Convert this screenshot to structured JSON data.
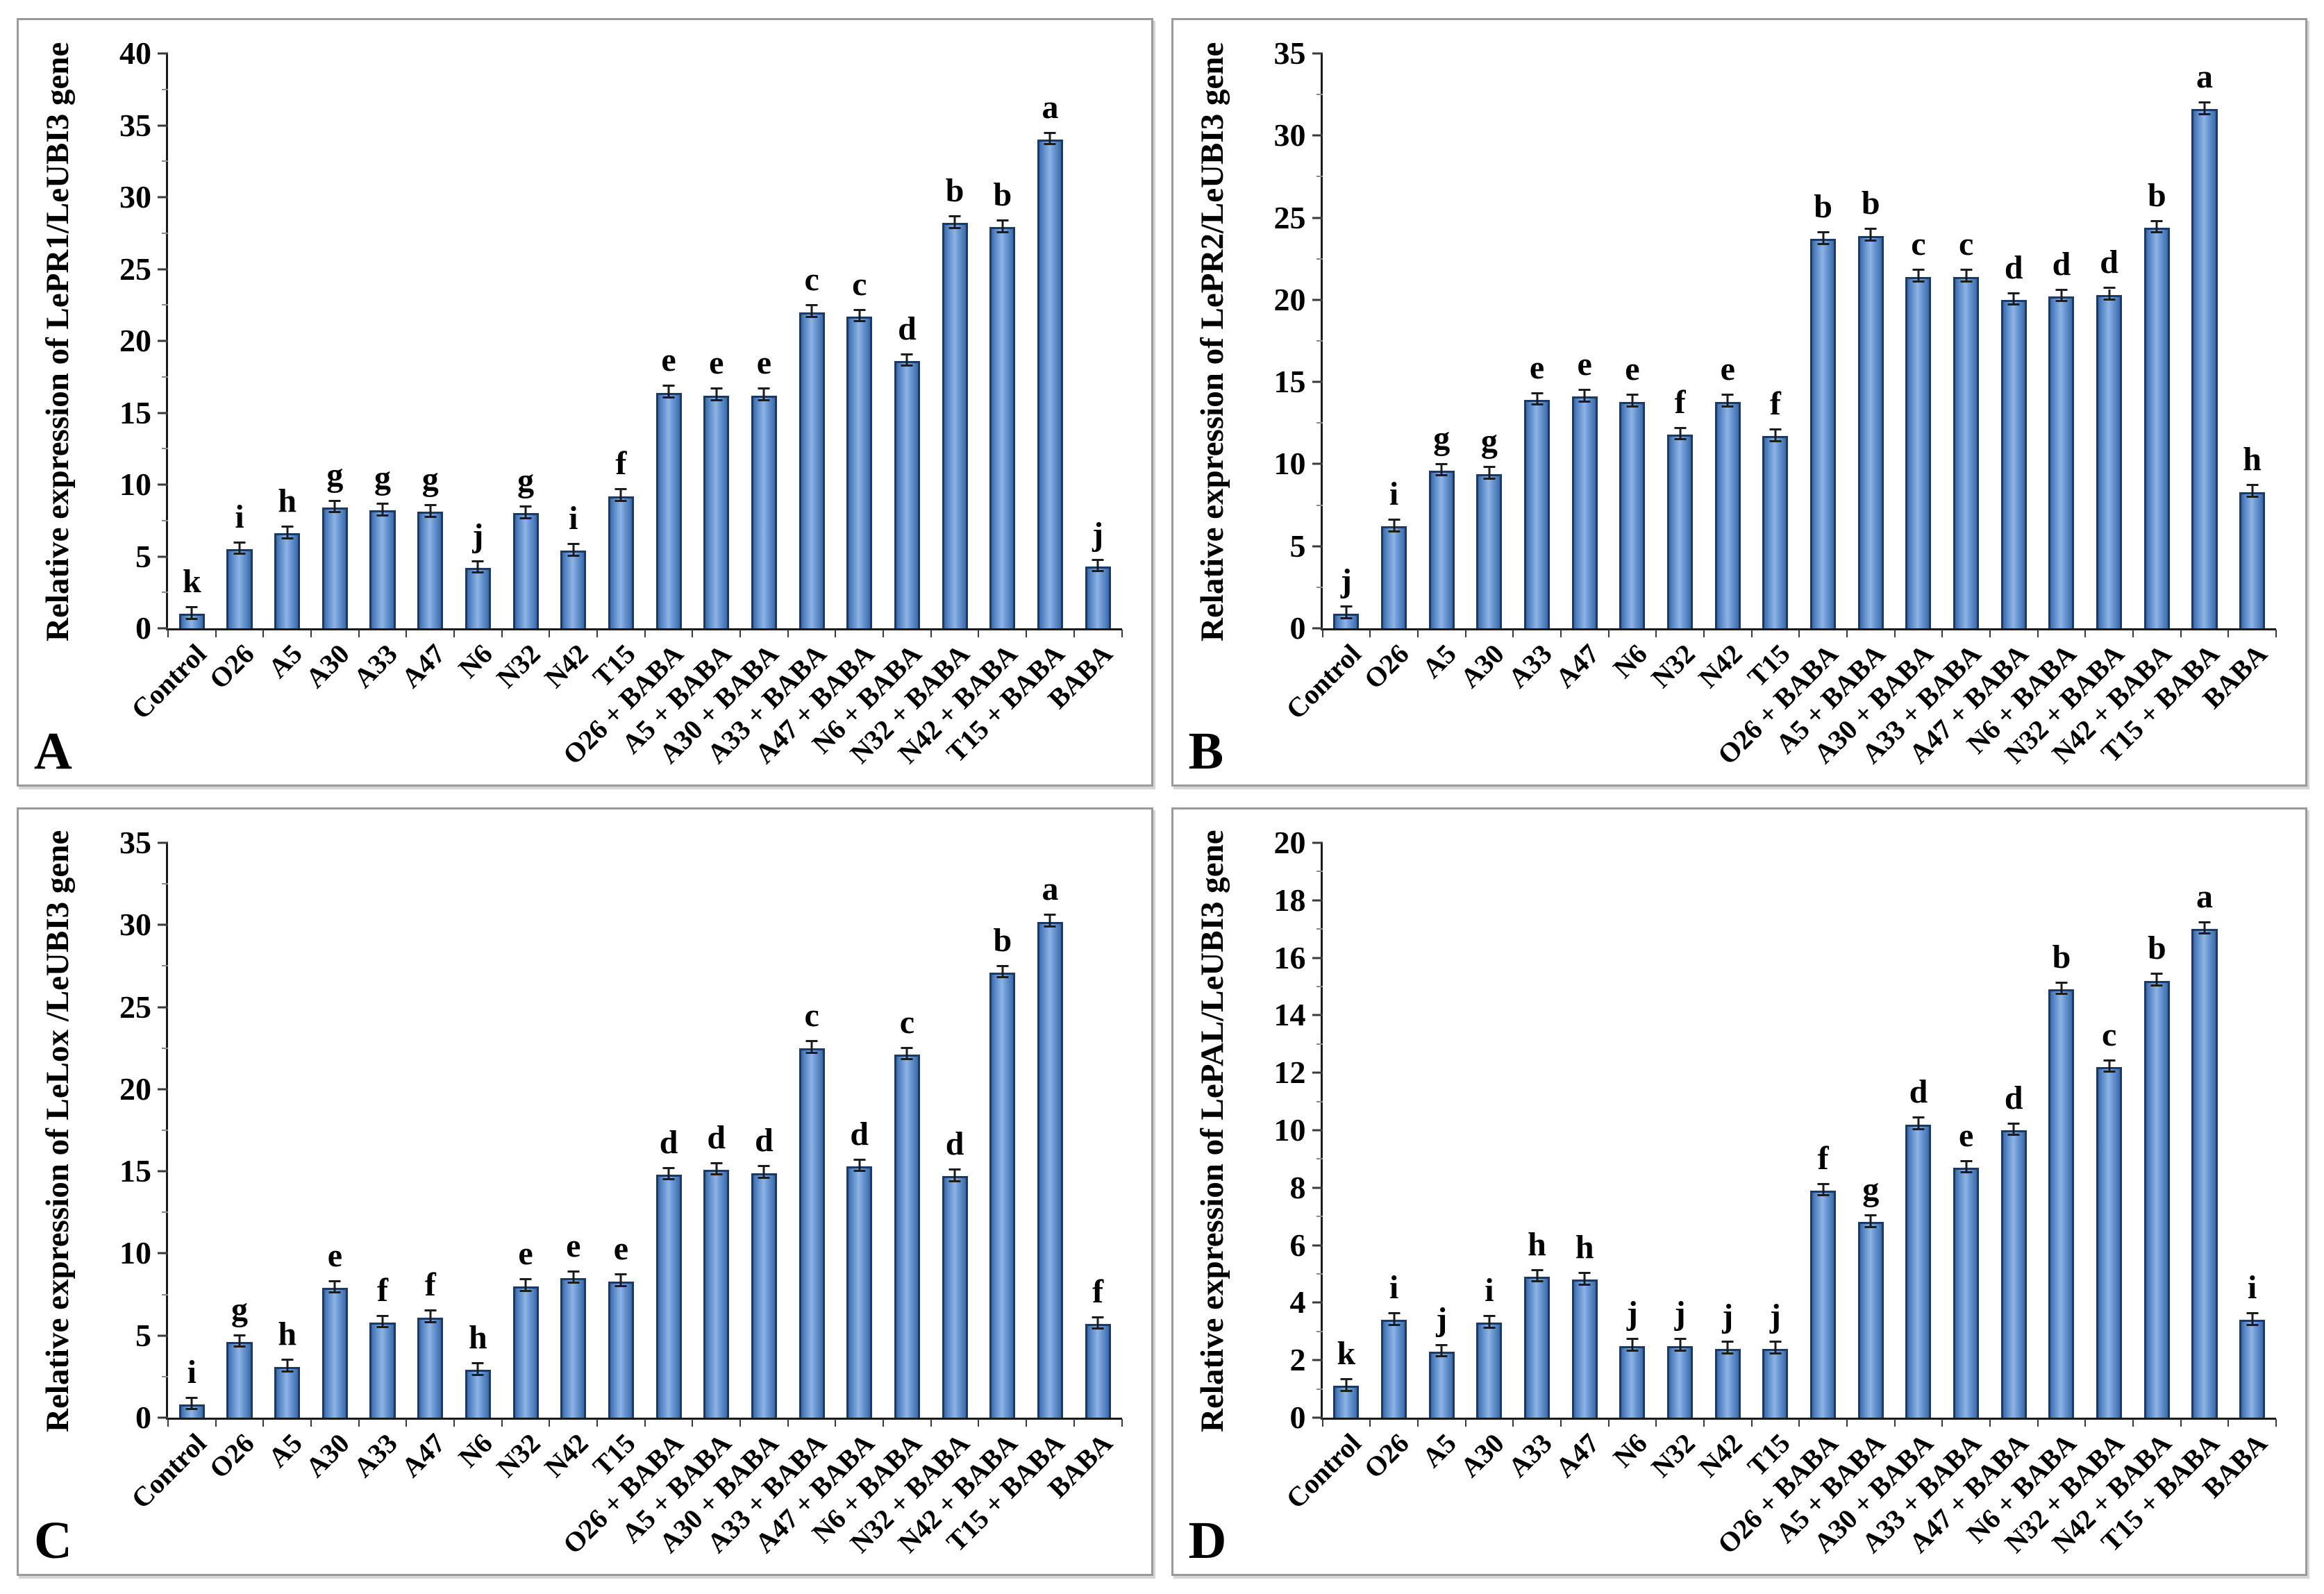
{
  "figure": {
    "colors": {
      "bar-edge": "#3e6cab",
      "bar-mid": "#6796d2",
      "bar-highlight": "#8fb4e3",
      "bar-border": "#1b3a66",
      "axis": "#1a1a1a",
      "panel-border": "#9a9a9a"
    }
  },
  "chart_data": [
    {
      "type": "bar",
      "panel_label": "A",
      "ylabel": "Relative expression of LePR1/LeUBI3 gene",
      "xlabel": "",
      "ylim": [
        0,
        40
      ],
      "ytick_step": 5,
      "yticks": [
        0,
        5,
        10,
        15,
        20,
        25,
        30,
        35,
        40
      ],
      "grid": false,
      "legend": false,
      "error_bar": 0.4,
      "categories": [
        "Control",
        "O26",
        "A5",
        "A30",
        "A33",
        "A47",
        "N6",
        "N32",
        "N42",
        "T15",
        "O26 + BABA",
        "A5 + BABA",
        "A30 + BABA",
        "A33 + BABA",
        "A47 + BABA",
        "N6 + BABA",
        "N32 + BABA",
        "N42 + BABA",
        "T15 + BABA",
        "BABA"
      ],
      "values": [
        1.0,
        5.5,
        6.6,
        8.4,
        8.2,
        8.1,
        4.2,
        8.0,
        5.4,
        9.2,
        16.4,
        16.2,
        16.2,
        22.0,
        21.7,
        18.6,
        28.2,
        27.9,
        34.0,
        4.3
      ],
      "sig_letters": [
        "k",
        "i",
        "h",
        "g",
        "g",
        "g",
        "j",
        "g",
        "i",
        "f",
        "e",
        "e",
        "e",
        "c",
        "c",
        "d",
        "b",
        "b",
        "a",
        "j"
      ]
    },
    {
      "type": "bar",
      "panel_label": "B",
      "ylabel": "Relative expression of LePR2/LeUBI3 gene",
      "xlabel": "",
      "ylim": [
        0,
        35
      ],
      "ytick_step": 5,
      "yticks": [
        0,
        5,
        10,
        15,
        20,
        25,
        30,
        35
      ],
      "grid": false,
      "legend": false,
      "error_bar": 0.35,
      "categories": [
        "Control",
        "O26",
        "A5",
        "A30",
        "A33",
        "A47",
        "N6",
        "N32",
        "N42",
        "T15",
        "O26 + BABA",
        "A5 + BABA",
        "A30 + BABA",
        "A33 + BABA",
        "A47 + BABA",
        "N6 + BABA",
        "N32 + BABA",
        "N42 + BABA",
        "T15 + BABA",
        "BABA"
      ],
      "values": [
        0.9,
        6.2,
        9.6,
        9.4,
        13.9,
        14.1,
        13.8,
        11.8,
        13.8,
        11.7,
        23.7,
        23.9,
        21.4,
        21.4,
        20.0,
        20.2,
        20.3,
        24.4,
        31.6,
        8.3
      ],
      "sig_letters": [
        "j",
        "i",
        "g",
        "g",
        "e",
        "e",
        "e",
        "f",
        "e",
        "f",
        "b",
        "b",
        "c",
        "c",
        "d",
        "d",
        "d",
        "b",
        "a",
        "h"
      ]
    },
    {
      "type": "bar",
      "panel_label": "C",
      "ylabel": "Relative expression of LeLox /LeUBI3 gene",
      "xlabel": "",
      "ylim": [
        0,
        35
      ],
      "ytick_step": 5,
      "yticks": [
        0,
        5,
        10,
        15,
        20,
        25,
        30,
        35
      ],
      "grid": false,
      "legend": false,
      "error_bar": 0.35,
      "categories": [
        "Control",
        "O26",
        "A5",
        "A30",
        "A33",
        "A47",
        "N6",
        "N32",
        "N42",
        "T15",
        "O26 + BABA",
        "A5 + BABA",
        "A30 + BABA",
        "A33 + BABA",
        "A47 + BABA",
        "N6 + BABA",
        "N32 + BABA",
        "N42 + BABA",
        "T15 + BABA",
        "BABA"
      ],
      "values": [
        0.8,
        4.6,
        3.1,
        7.9,
        5.8,
        6.1,
        2.9,
        8.0,
        8.5,
        8.3,
        14.8,
        15.1,
        14.9,
        22.5,
        15.3,
        22.1,
        14.7,
        27.1,
        30.2,
        5.7
      ],
      "sig_letters": [
        "i",
        "g",
        "h",
        "e",
        "f",
        "f",
        "h",
        "e",
        "e",
        "e",
        "d",
        "d",
        "d",
        "c",
        "d",
        "c",
        "d",
        "b",
        "a",
        "f"
      ]
    },
    {
      "type": "bar",
      "panel_label": "D",
      "ylabel": "Relative expression of LePAL/LeUBI3 gene",
      "xlabel": "",
      "ylim": [
        0,
        20
      ],
      "ytick_step": 2,
      "yticks": [
        0,
        2,
        4,
        6,
        8,
        10,
        12,
        14,
        16,
        18,
        20
      ],
      "grid": false,
      "legend": false,
      "error_bar": 0.2,
      "categories": [
        "Control",
        "O26",
        "A5",
        "A30",
        "A33",
        "A47",
        "N6",
        "N32",
        "N42",
        "T15",
        "O26 + BABA",
        "A5 + BABA",
        "A30 + BABA",
        "A33 + BABA",
        "A47 + BABA",
        "N6 + BABA",
        "N32 + BABA",
        "N42 + BABA",
        "T15 + BABA",
        "BABA"
      ],
      "values": [
        1.1,
        3.4,
        2.3,
        3.3,
        4.9,
        4.8,
        2.5,
        2.5,
        2.4,
        2.4,
        7.9,
        6.8,
        10.2,
        8.7,
        10.0,
        14.9,
        12.2,
        15.2,
        17.0,
        3.4
      ],
      "sig_letters": [
        "k",
        "i",
        "j",
        "i",
        "h",
        "h",
        "j",
        "j",
        "j",
        "j",
        "f",
        "g",
        "d",
        "e",
        "d",
        "b",
        "c",
        "b",
        "a",
        "i"
      ]
    }
  ]
}
